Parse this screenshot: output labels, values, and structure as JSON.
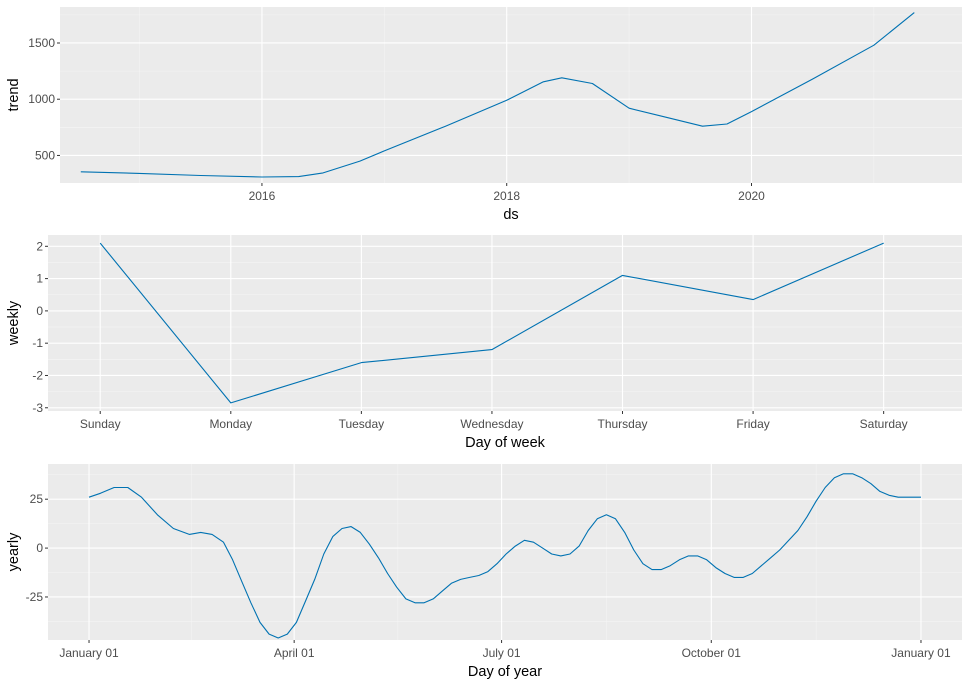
{
  "line_color": "#0072B2",
  "panel_color": "#ebebeb",
  "chart_data": [
    {
      "type": "line",
      "xlabel": "ds",
      "ylabel": "trend",
      "x_ticks": [
        {
          "value": 2016,
          "label": "2016"
        },
        {
          "value": 2018,
          "label": "2018"
        },
        {
          "value": 2020,
          "label": "2020"
        }
      ],
      "y_ticks": [
        {
          "value": 500,
          "label": "500"
        },
        {
          "value": 1000,
          "label": "1000"
        },
        {
          "value": 1500,
          "label": "1500"
        }
      ],
      "xlim": [
        2014.35,
        2021.72
      ],
      "ylim": [
        255,
        1820
      ],
      "grid": true,
      "series": [
        {
          "x": [
            2014.52,
            2015.0,
            2015.5,
            2016.0,
            2016.3,
            2016.5,
            2016.8,
            2017.0,
            2017.5,
            2018.0,
            2018.3,
            2018.45,
            2018.7,
            2019.0,
            2019.3,
            2019.6,
            2019.8,
            2020.0,
            2020.5,
            2021.0,
            2021.33
          ],
          "y": [
            355,
            340,
            322,
            308,
            312,
            345,
            450,
            540,
            760,
            990,
            1155,
            1190,
            1140,
            920,
            840,
            760,
            780,
            890,
            1180,
            1480,
            1770
          ]
        }
      ]
    },
    {
      "type": "line",
      "xlabel": "Day of week",
      "ylabel": "weekly",
      "categories": [
        "Sunday",
        "Monday",
        "Tuesday",
        "Wednesday",
        "Thursday",
        "Friday",
        "Saturday"
      ],
      "y_ticks": [
        {
          "value": -3,
          "label": "-3"
        },
        {
          "value": -2,
          "label": "-2"
        },
        {
          "value": -1,
          "label": "-1"
        },
        {
          "value": 0,
          "label": "0"
        },
        {
          "value": 1,
          "label": "1"
        },
        {
          "value": 2,
          "label": "2"
        }
      ],
      "ylim": [
        -3.1,
        2.35
      ],
      "grid": true,
      "series": [
        {
          "values": [
            2.1,
            -2.85,
            -1.6,
            -1.2,
            1.1,
            0.35,
            2.1
          ]
        }
      ]
    },
    {
      "type": "line",
      "xlabel": "Day of year",
      "ylabel": "yearly",
      "x_ticks": [
        {
          "value": 1,
          "label": "January 01"
        },
        {
          "value": 91,
          "label": "April 01"
        },
        {
          "value": 182,
          "label": "July 01"
        },
        {
          "value": 274,
          "label": "October 01"
        },
        {
          "value": 366,
          "label": "January 01"
        }
      ],
      "y_ticks": [
        {
          "value": -25,
          "label": "-25"
        },
        {
          "value": 0,
          "label": "0"
        },
        {
          "value": 25,
          "label": "25"
        }
      ],
      "xlim": [
        -17,
        384
      ],
      "ylim": [
        -47,
        43
      ],
      "grid": true,
      "series": [
        {
          "x": [
            1,
            6,
            12,
            18,
            24,
            31,
            38,
            45,
            50,
            55,
            60,
            64,
            68,
            72,
            76,
            80,
            84,
            88,
            92,
            96,
            100,
            104,
            108,
            112,
            116,
            120,
            124,
            128,
            132,
            136,
            140,
            144,
            148,
            152,
            156,
            160,
            164,
            168,
            172,
            176,
            180,
            184,
            188,
            192,
            196,
            200,
            204,
            208,
            212,
            216,
            220,
            224,
            228,
            232,
            236,
            240,
            244,
            248,
            252,
            256,
            260,
            264,
            268,
            272,
            276,
            280,
            284,
            288,
            292,
            296,
            300,
            304,
            308,
            312,
            316,
            320,
            324,
            328,
            332,
            336,
            340,
            344,
            348,
            352,
            356,
            360,
            366
          ],
          "y": [
            26,
            28,
            31,
            31,
            26,
            17,
            10,
            7,
            8,
            7,
            3,
            -6,
            -17,
            -28,
            -38,
            -44,
            -46,
            -44,
            -38,
            -27,
            -16,
            -3,
            6,
            10,
            11,
            8,
            2,
            -5,
            -13,
            -20,
            -26,
            -28,
            -28,
            -26,
            -22,
            -18,
            -16,
            -15,
            -14,
            -12,
            -8,
            -3,
            1,
            4,
            3,
            0,
            -3,
            -4,
            -3,
            1,
            9,
            15,
            17,
            15,
            8,
            -1,
            -8,
            -11,
            -11,
            -9,
            -6,
            -4,
            -4,
            -6,
            -10,
            -13,
            -15,
            -15,
            -13,
            -9,
            -5,
            -1,
            4,
            9,
            16,
            24,
            31,
            36,
            38,
            38,
            36,
            33,
            29,
            27,
            26,
            26,
            26
          ]
        }
      ]
    }
  ]
}
